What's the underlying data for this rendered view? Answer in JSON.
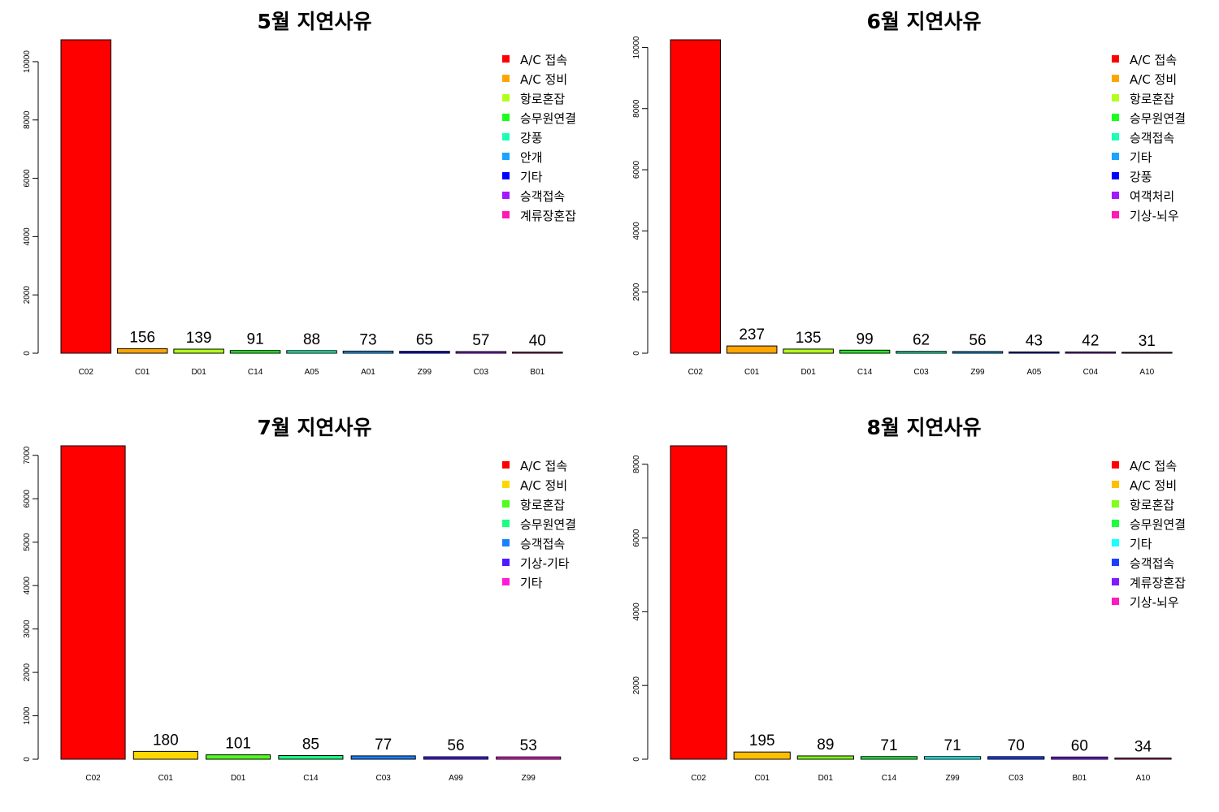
{
  "chart_data": [
    {
      "type": "bar",
      "title": "5월 지연사유",
      "categories": [
        "C02",
        "C01",
        "D01",
        "C14",
        "A05",
        "A01",
        "Z99",
        "C03",
        "B01"
      ],
      "values": [
        10750,
        156,
        139,
        91,
        88,
        73,
        65,
        57,
        40
      ],
      "data_labels": [
        "",
        "156",
        "139",
        "91",
        "88",
        "73",
        "65",
        "57",
        "40"
      ],
      "colors": [
        "#FF0000",
        "#FFA500",
        "#B2FF1A",
        "#1AFF1A",
        "#1AFFB2",
        "#1AA3FF",
        "#0000FF",
        "#A31AFF",
        "#FF1AB2"
      ],
      "legend": [
        "A/C 접속",
        "A/C 정비",
        "항로혼잡",
        "승무원연결",
        "강풍",
        "안개",
        "기타",
        "승객접속",
        "계류장혼잡"
      ],
      "ylim": [
        0,
        10750
      ],
      "yticks": [
        0,
        2000,
        4000,
        6000,
        8000,
        10000
      ],
      "xlabel": "",
      "ylabel": "",
      "legend_position": "top-right",
      "grid": false
    },
    {
      "type": "bar",
      "title": "6월 지연사유",
      "categories": [
        "C02",
        "C01",
        "D01",
        "C14",
        "C03",
        "Z99",
        "A05",
        "C04",
        "A10"
      ],
      "values": [
        10250,
        237,
        135,
        99,
        62,
        56,
        43,
        42,
        31
      ],
      "data_labels": [
        "",
        "237",
        "135",
        "99",
        "62",
        "56",
        "43",
        "42",
        "31"
      ],
      "colors": [
        "#FF0000",
        "#FFA500",
        "#B2FF1A",
        "#1AFF1A",
        "#1AFFB2",
        "#1AA3FF",
        "#0000FF",
        "#A31AFF",
        "#FF1AB2"
      ],
      "legend": [
        "A/C 접속",
        "A/C 정비",
        "항로혼잡",
        "승무원연결",
        "승객접속",
        "기타",
        "강풍",
        "여객처리",
        "기상-뇌우"
      ],
      "ylim": [
        0,
        10250
      ],
      "yticks": [
        0,
        2000,
        4000,
        6000,
        8000,
        10000
      ],
      "xlabel": "",
      "ylabel": "",
      "legend_position": "top-right",
      "grid": false
    },
    {
      "type": "bar",
      "title": "7월 지연사유",
      "categories": [
        "C02",
        "C01",
        "D01",
        "C14",
        "C03",
        "A99",
        "Z99"
      ],
      "values": [
        7220,
        180,
        101,
        85,
        77,
        56,
        53
      ],
      "data_labels": [
        "",
        "180",
        "101",
        "85",
        "77",
        "56",
        "53"
      ],
      "colors": [
        "#FF0000",
        "#FFD700",
        "#4DFF1A",
        "#1AFF80",
        "#1A80FF",
        "#4D1AFF",
        "#FF1AD7"
      ],
      "legend": [
        "A/C 접속",
        "A/C 정비",
        "항로혼잡",
        "승무원연결",
        "승객접속",
        "기상-기타",
        "기타"
      ],
      "ylim": [
        0,
        7220
      ],
      "yticks": [
        0,
        1000,
        2000,
        3000,
        4000,
        5000,
        6000,
        7000
      ],
      "xlabel": "",
      "ylabel": "",
      "legend_position": "top-right",
      "grid": false
    },
    {
      "type": "bar",
      "title": "8월 지연사유",
      "categories": [
        "C02",
        "C01",
        "D01",
        "C14",
        "Z99",
        "C03",
        "B01",
        "A10"
      ],
      "values": [
        8500,
        195,
        89,
        71,
        71,
        70,
        60,
        34
      ],
      "data_labels": [
        "",
        "195",
        "89",
        "71",
        "71",
        "70",
        "60",
        "34"
      ],
      "colors": [
        "#FF0000",
        "#FFBF00",
        "#80FF1A",
        "#1AFF40",
        "#1AFFFF",
        "#1A40FF",
        "#801AFF",
        "#FF1ABF"
      ],
      "legend": [
        "A/C 접속",
        "A/C 정비",
        "항로혼잡",
        "승무원연결",
        "기타",
        "승객접속",
        "계류장혼잡",
        "기상-뇌우"
      ],
      "ylim": [
        0,
        8500
      ],
      "yticks": [
        0,
        2000,
        4000,
        6000,
        8000
      ],
      "xlabel": "",
      "ylabel": "",
      "legend_position": "top-right",
      "grid": false
    }
  ]
}
